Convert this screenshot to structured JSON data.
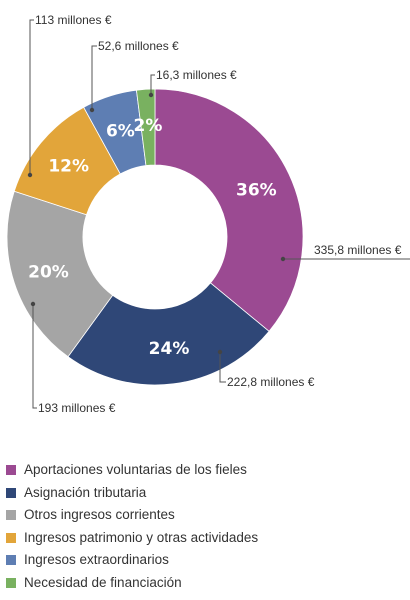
{
  "chart_data": {
    "type": "pie",
    "donut": true,
    "title": "",
    "start_angle_deg": 0,
    "direction": "clockwise",
    "series": [
      {
        "name": "Aportaciones voluntarias de los fieles",
        "percent": 36,
        "percent_label": "36%",
        "value_label": "335,8 millones €",
        "color": "#9b4a92"
      },
      {
        "name": "Asignación tributaria",
        "percent": 24,
        "percent_label": "24%",
        "value_label": "222,8 millones €",
        "color": "#2f4777"
      },
      {
        "name": "Otros ingresos corrientes",
        "percent": 20,
        "percent_label": "20%",
        "value_label": "193 millones €",
        "color": "#a5a5a5"
      },
      {
        "name": "Ingresos patrimonio y otras actividades",
        "percent": 12,
        "percent_label": "12%",
        "value_label": "113 millones €",
        "color": "#e2a53a"
      },
      {
        "name": "Ingresos extraordinarios",
        "percent": 6,
        "percent_label": "6%",
        "value_label": "52,6 millones €",
        "color": "#5e7eb3"
      },
      {
        "name": "Necesidad de financiación",
        "percent": 2,
        "percent_label": "2%",
        "value_label": "16,3 millones €",
        "color": "#79b160"
      }
    ],
    "legend_position": "bottom-left"
  }
}
